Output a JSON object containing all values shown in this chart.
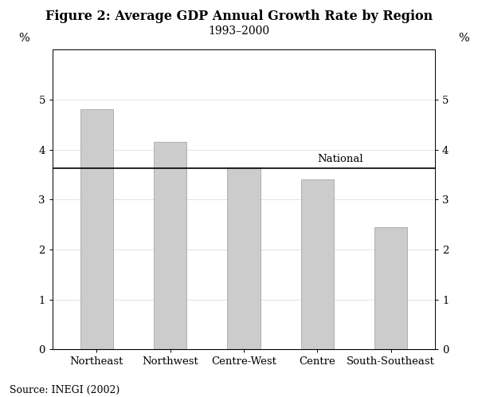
{
  "title_line1": "Figure 2: Average GDP Annual Growth Rate by Region",
  "title_line2": "1993–2000",
  "categories": [
    "Northeast",
    "Northwest",
    "Centre-West",
    "Centre",
    "South-Southeast"
  ],
  "values": [
    4.8,
    4.15,
    3.65,
    3.4,
    2.45
  ],
  "national_line": 3.63,
  "national_label": "National",
  "bar_color": "#cccccc",
  "bar_edgecolor": "#999999",
  "national_line_color": "#000000",
  "ylim": [
    0,
    6
  ],
  "yticks": [
    0,
    1,
    2,
    3,
    4,
    5
  ],
  "ylabel_left": "%",
  "ylabel_right": "%",
  "source": "Source: INEGI (2002)",
  "title_fontsize": 11.5,
  "subtitle_fontsize": 10,
  "tick_fontsize": 9.5,
  "source_fontsize": 9,
  "national_label_fontsize": 9.5,
  "bar_width": 0.45
}
